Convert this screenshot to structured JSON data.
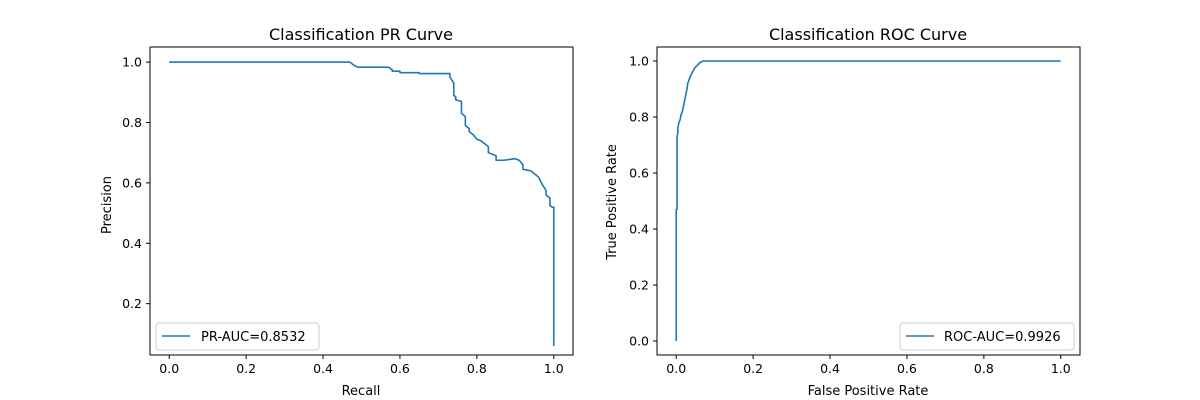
{
  "colors": {
    "series": "#1f77b4",
    "background": "#ffffff",
    "axes": "#000000"
  },
  "chart_data": [
    {
      "type": "line",
      "title": "Classification PR Curve",
      "xlabel": "Recall",
      "ylabel": "Precision",
      "xlim": [
        -0.05,
        1.05
      ],
      "ylim": [
        0.03,
        1.05
      ],
      "xticks": [
        0.0,
        0.2,
        0.4,
        0.6,
        0.8,
        1.0
      ],
      "xtick_labels": [
        "0.0",
        "0.2",
        "0.4",
        "0.6",
        "0.8",
        "1.0"
      ],
      "yticks": [
        0.2,
        0.4,
        0.6,
        0.8,
        1.0
      ],
      "ytick_labels": [
        "0.2",
        "0.4",
        "0.6",
        "0.8",
        "1.0"
      ],
      "legend_position": "lower-left",
      "grid": false,
      "series": [
        {
          "name": "PR-AUC=0.8532",
          "x": [
            0.0,
            0.47,
            0.48,
            0.49,
            0.57,
            0.58,
            0.58,
            0.6,
            0.6,
            0.65,
            0.65,
            0.73,
            0.73,
            0.74,
            0.74,
            0.745,
            0.745,
            0.76,
            0.76,
            0.77,
            0.77,
            0.78,
            0.78,
            0.79,
            0.8,
            0.81,
            0.82,
            0.83,
            0.83,
            0.85,
            0.85,
            0.87,
            0.9,
            0.91,
            0.92,
            0.92,
            0.94,
            0.95,
            0.96,
            0.97,
            0.98,
            0.98,
            0.99,
            0.99,
            0.995,
            1.0,
            1.0
          ],
          "y": [
            1.0,
            1.0,
            0.99,
            0.983,
            0.983,
            0.975,
            0.97,
            0.97,
            0.965,
            0.965,
            0.962,
            0.962,
            0.95,
            0.93,
            0.89,
            0.885,
            0.875,
            0.87,
            0.83,
            0.82,
            0.79,
            0.78,
            0.77,
            0.76,
            0.745,
            0.74,
            0.73,
            0.72,
            0.7,
            0.69,
            0.675,
            0.675,
            0.68,
            0.675,
            0.66,
            0.645,
            0.64,
            0.63,
            0.62,
            0.595,
            0.575,
            0.56,
            0.55,
            0.525,
            0.52,
            0.52,
            0.06
          ]
        }
      ]
    },
    {
      "type": "line",
      "title": "Classification ROC Curve",
      "xlabel": "False Positive Rate",
      "ylabel": "True Positive Rate",
      "xlim": [
        -0.05,
        1.05
      ],
      "ylim": [
        -0.05,
        1.05
      ],
      "xticks": [
        0.0,
        0.2,
        0.4,
        0.6,
        0.8,
        1.0
      ],
      "xtick_labels": [
        "0.0",
        "0.2",
        "0.4",
        "0.6",
        "0.8",
        "1.0"
      ],
      "yticks": [
        0.0,
        0.2,
        0.4,
        0.6,
        0.8,
        1.0
      ],
      "ytick_labels": [
        "0.0",
        "0.2",
        "0.4",
        "0.6",
        "0.8",
        "1.0"
      ],
      "legend_position": "lower-right",
      "grid": false,
      "series": [
        {
          "name": "ROC-AUC=0.9926",
          "x": [
            0.0,
            0.0,
            0.002,
            0.002,
            0.004,
            0.004,
            0.007,
            0.01,
            0.013,
            0.016,
            0.019,
            0.022,
            0.025,
            0.028,
            0.03,
            0.034,
            0.038,
            0.042,
            0.048,
            0.055,
            0.062,
            0.07,
            1.0
          ],
          "y": [
            0.0,
            0.47,
            0.47,
            0.73,
            0.74,
            0.76,
            0.78,
            0.79,
            0.81,
            0.82,
            0.84,
            0.86,
            0.88,
            0.9,
            0.92,
            0.935,
            0.95,
            0.96,
            0.975,
            0.985,
            0.995,
            1.0,
            1.0
          ]
        }
      ]
    }
  ]
}
